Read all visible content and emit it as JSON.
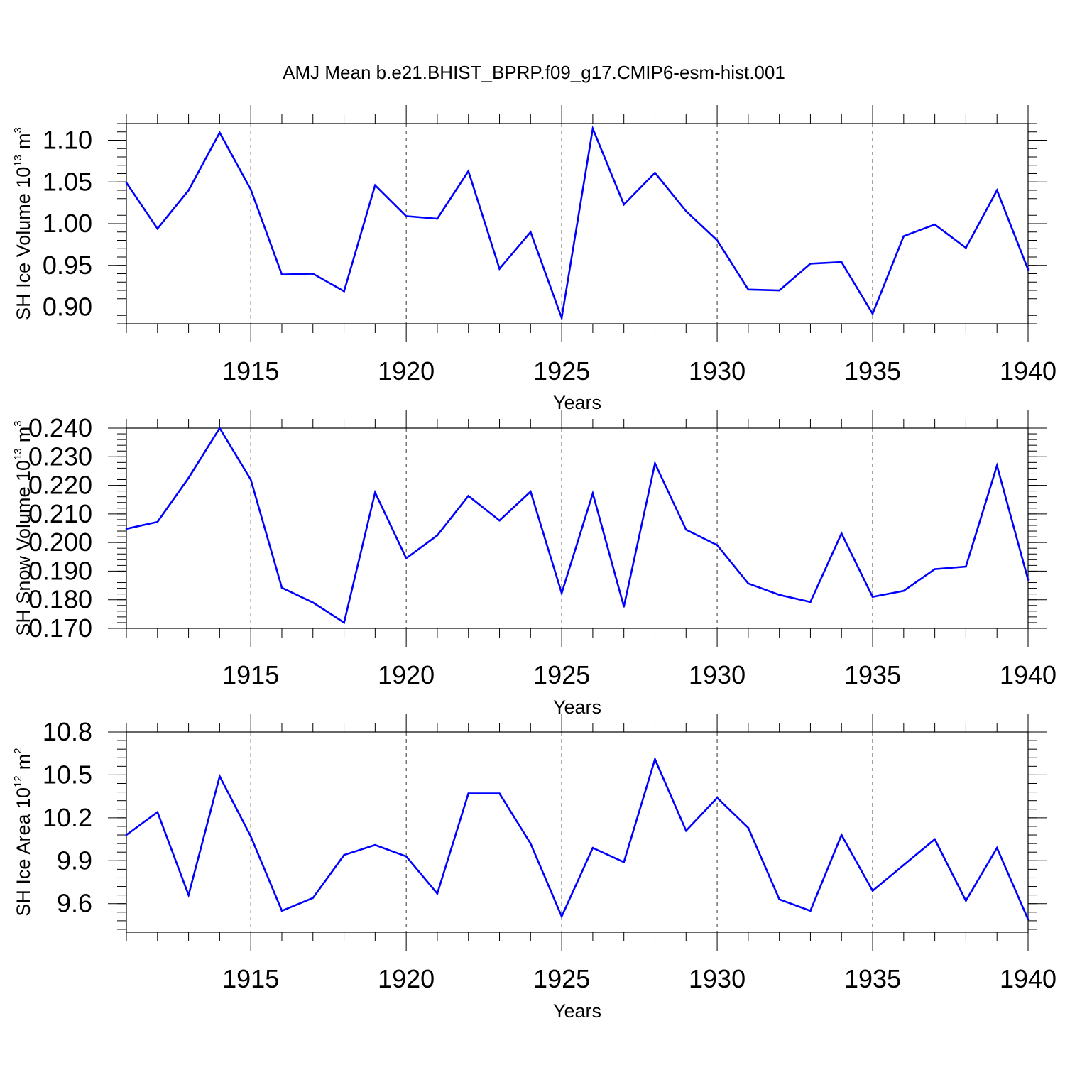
{
  "title": "AMJ Mean b.e21.BHIST_BPRP.f09_g17.CMIP6-esm-hist.001",
  "colors": {
    "line": "#0000ff",
    "axis": "#000000",
    "grid": "#000000"
  },
  "chart_data": [
    {
      "type": "line",
      "ylabel": "SH Ice Volume",
      "yunit_base": "10",
      "yunit_exp": "13",
      "yunit_unit": "m",
      "yunit_unit_exp": "3",
      "xlabel": "Years",
      "xlim": [
        1911,
        1940
      ],
      "ylim": [
        0.88,
        1.12
      ],
      "yticks": [
        "0.90",
        "0.95",
        "1.00",
        "1.05",
        "1.10"
      ],
      "xticks": [
        "1915",
        "1920",
        "1925",
        "1930",
        "1935",
        "1940"
      ],
      "grid": "vertical dashed at labeled years",
      "x": [
        1911,
        1912,
        1913,
        1914,
        1915,
        1916,
        1917,
        1918,
        1919,
        1920,
        1921,
        1922,
        1923,
        1924,
        1925,
        1926,
        1927,
        1928,
        1929,
        1930,
        1931,
        1932,
        1933,
        1934,
        1935,
        1936,
        1937,
        1938,
        1939,
        1940
      ],
      "series": [
        {
          "values": [
            1.049,
            0.994,
            1.04,
            1.109,
            1.041,
            0.939,
            0.94,
            0.919,
            1.046,
            1.009,
            1.006,
            1.063,
            0.946,
            0.99,
            0.887,
            1.114,
            1.023,
            1.061,
            1.015,
            0.98,
            0.921,
            0.92,
            0.952,
            0.954,
            0.892,
            0.985,
            0.999,
            0.971,
            1.04,
            0.945
          ]
        }
      ]
    },
    {
      "type": "line",
      "ylabel": "SH Snow Volume",
      "yunit_base": "10",
      "yunit_exp": "13",
      "yunit_unit": "m",
      "yunit_unit_exp": "3",
      "xlabel": "Years",
      "xlim": [
        1911,
        1940
      ],
      "ylim": [
        0.17,
        0.24
      ],
      "yticks": [
        "0.170",
        "0.180",
        "0.190",
        "0.200",
        "0.210",
        "0.220",
        "0.230",
        "0.240"
      ],
      "xticks": [
        "1915",
        "1920",
        "1925",
        "1930",
        "1935",
        "1940"
      ],
      "grid": "vertical dashed at labeled years",
      "x": [
        1911,
        1912,
        1913,
        1914,
        1915,
        1916,
        1917,
        1918,
        1919,
        1920,
        1921,
        1922,
        1923,
        1924,
        1925,
        1926,
        1927,
        1928,
        1929,
        1930,
        1931,
        1932,
        1933,
        1934,
        1935,
        1936,
        1937,
        1938,
        1939,
        1940
      ],
      "series": [
        {
          "values": [
            0.2048,
            0.2072,
            0.2226,
            0.24,
            0.222,
            0.1842,
            0.179,
            0.172,
            0.2175,
            0.1945,
            0.2025,
            0.2163,
            0.2077,
            0.2178,
            0.1823,
            0.2172,
            0.1776,
            0.2277,
            0.2045,
            0.1991,
            0.1857,
            0.1817,
            0.1792,
            0.2032,
            0.181,
            0.1831,
            0.1907,
            0.1916,
            0.2269,
            0.187
          ]
        }
      ]
    },
    {
      "type": "line",
      "ylabel": "SH Ice Area",
      "yunit_base": "10",
      "yunit_exp": "12",
      "yunit_unit": "m",
      "yunit_unit_exp": "2",
      "xlabel": "Years",
      "xlim": [
        1911,
        1940
      ],
      "ylim": [
        9.4,
        10.8
      ],
      "yticks": [
        "9.6",
        "9.9",
        "10.2",
        "10.5",
        "10.8"
      ],
      "xticks": [
        "1915",
        "1920",
        "1925",
        "1930",
        "1935",
        "1940"
      ],
      "grid": "vertical dashed at labeled years",
      "x": [
        1911,
        1912,
        1913,
        1914,
        1915,
        1916,
        1917,
        1918,
        1919,
        1920,
        1921,
        1922,
        1923,
        1924,
        1925,
        1926,
        1927,
        1928,
        1929,
        1930,
        1931,
        1932,
        1933,
        1934,
        1935,
        1936,
        1937,
        1938,
        1939,
        1940
      ],
      "series": [
        {
          "values": [
            10.08,
            10.24,
            9.66,
            10.49,
            10.07,
            9.55,
            9.64,
            9.94,
            10.01,
            9.93,
            9.67,
            10.37,
            10.37,
            10.02,
            9.51,
            9.99,
            9.89,
            10.61,
            10.11,
            10.34,
            10.13,
            9.63,
            9.55,
            10.08,
            9.69,
            9.87,
            10.05,
            9.62,
            9.99,
            9.49
          ]
        }
      ]
    }
  ]
}
